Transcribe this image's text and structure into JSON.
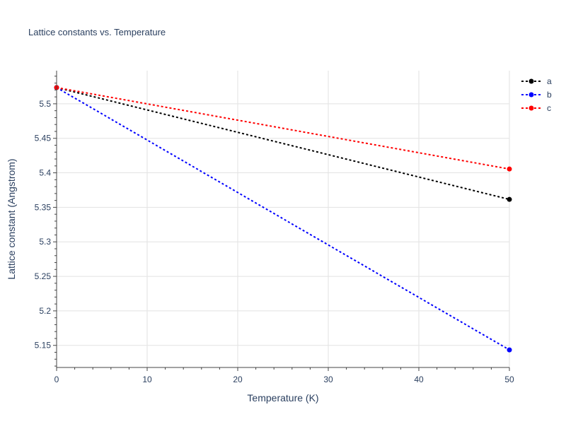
{
  "chart_data": {
    "type": "line",
    "title": "Lattice constants vs. Temperature",
    "xlabel": "Temperature (K)",
    "ylabel": "Lattice constant (Angstrom)",
    "xlim": [
      0,
      50
    ],
    "ylim": [
      5.118,
      5.548
    ],
    "x_ticks": [
      0,
      10,
      20,
      30,
      40,
      50
    ],
    "y_ticks": [
      5.15,
      5.2,
      5.25,
      5.3,
      5.35,
      5.4,
      5.45,
      5.5
    ],
    "grid": true,
    "legend": "top-right",
    "x": [
      0,
      50
    ],
    "series": [
      {
        "name": "a",
        "color": "#000000",
        "values": [
          5.5235,
          5.3615
        ]
      },
      {
        "name": "b",
        "color": "#0000ff",
        "values": [
          5.5235,
          5.1435
        ]
      },
      {
        "name": "c",
        "color": "#ff0000",
        "values": [
          5.5235,
          5.4055
        ]
      }
    ]
  }
}
